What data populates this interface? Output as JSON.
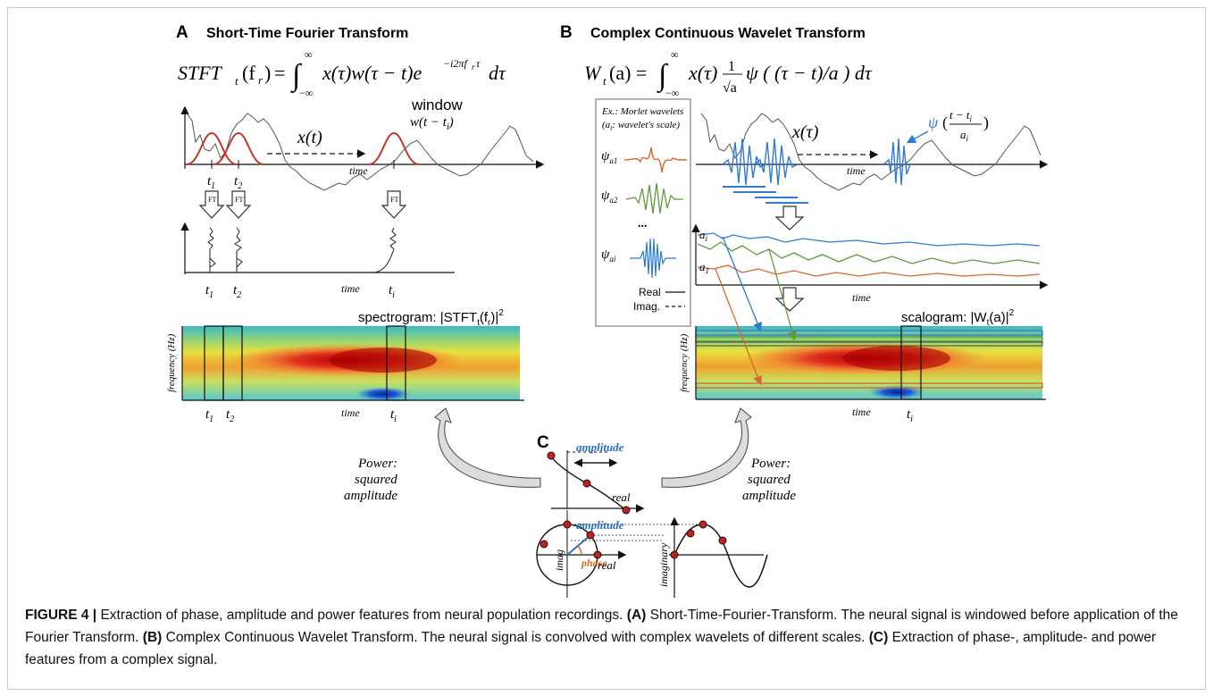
{
  "panelA": {
    "letter": "A",
    "title": "Short-Time Fourier Transform",
    "equation_lhs": "STFT",
    "equation_rhs": "= ∫ x(τ)w(τ − t)e",
    "signal_label": "x(t)",
    "window_label": "window",
    "window_func": "w(t − t",
    "time_label": "time",
    "t1": "t",
    "t2": "t",
    "ti": "t",
    "ft_label": "FT",
    "spectrogram_label": "spectrogram: |STFT",
    "freq_axis": "frequency (Hz)"
  },
  "panelB": {
    "letter": "B",
    "title": "Complex Continuous Wavelet Transform",
    "equation": "W",
    "legend_title_1": "Ex.: Morlet wavelets",
    "legend_title_2": "(a",
    "legend_title_3": ": wavelet's scale)",
    "psi": "ψ",
    "dots": "...",
    "legend_real": "Real",
    "legend_imag": "Imag.",
    "signal_label": "x(τ)",
    "psi_label": "ψ",
    "time_label": "time",
    "ai": "a",
    "a1": "a",
    "scalogram_label": "scalogram: |W",
    "freq_axis": "frequency (Hz)"
  },
  "panelC": {
    "letter": "C",
    "power_text": [
      "Power:",
      "squared",
      "amplitude"
    ],
    "amplitude": "amplitude",
    "real": "real",
    "imag": "imag",
    "phase": "phase",
    "imaginary": "imaginary"
  },
  "caption": {
    "figure": "FIGURE 4 |",
    "intro": " Extraction of phase, amplitude and power features from neural population recordings. ",
    "a_tag": "(A)",
    "a_text": " Short-Time-Fourier-Transform. The neural signal is windowed before application of the Fourier Transform. ",
    "b_tag": "(B)",
    "b_text": " Complex Continuous Wavelet Transform. The neural signal is convolved with complex wavelets of different scales. ",
    "c_tag": "(C)",
    "c_text": " Extraction of phase-, amplitude- and power features from a complex signal."
  },
  "colors": {
    "window_red": "#c0392b",
    "wavelet_blue": "#2e7bd1",
    "wavelet_orange": "#d9662a",
    "wavelet_green": "#5f9a3a",
    "accent_blue": "#2a6fc0",
    "phase_orange": "#d2691e",
    "dot_red": "#c81e1e"
  }
}
